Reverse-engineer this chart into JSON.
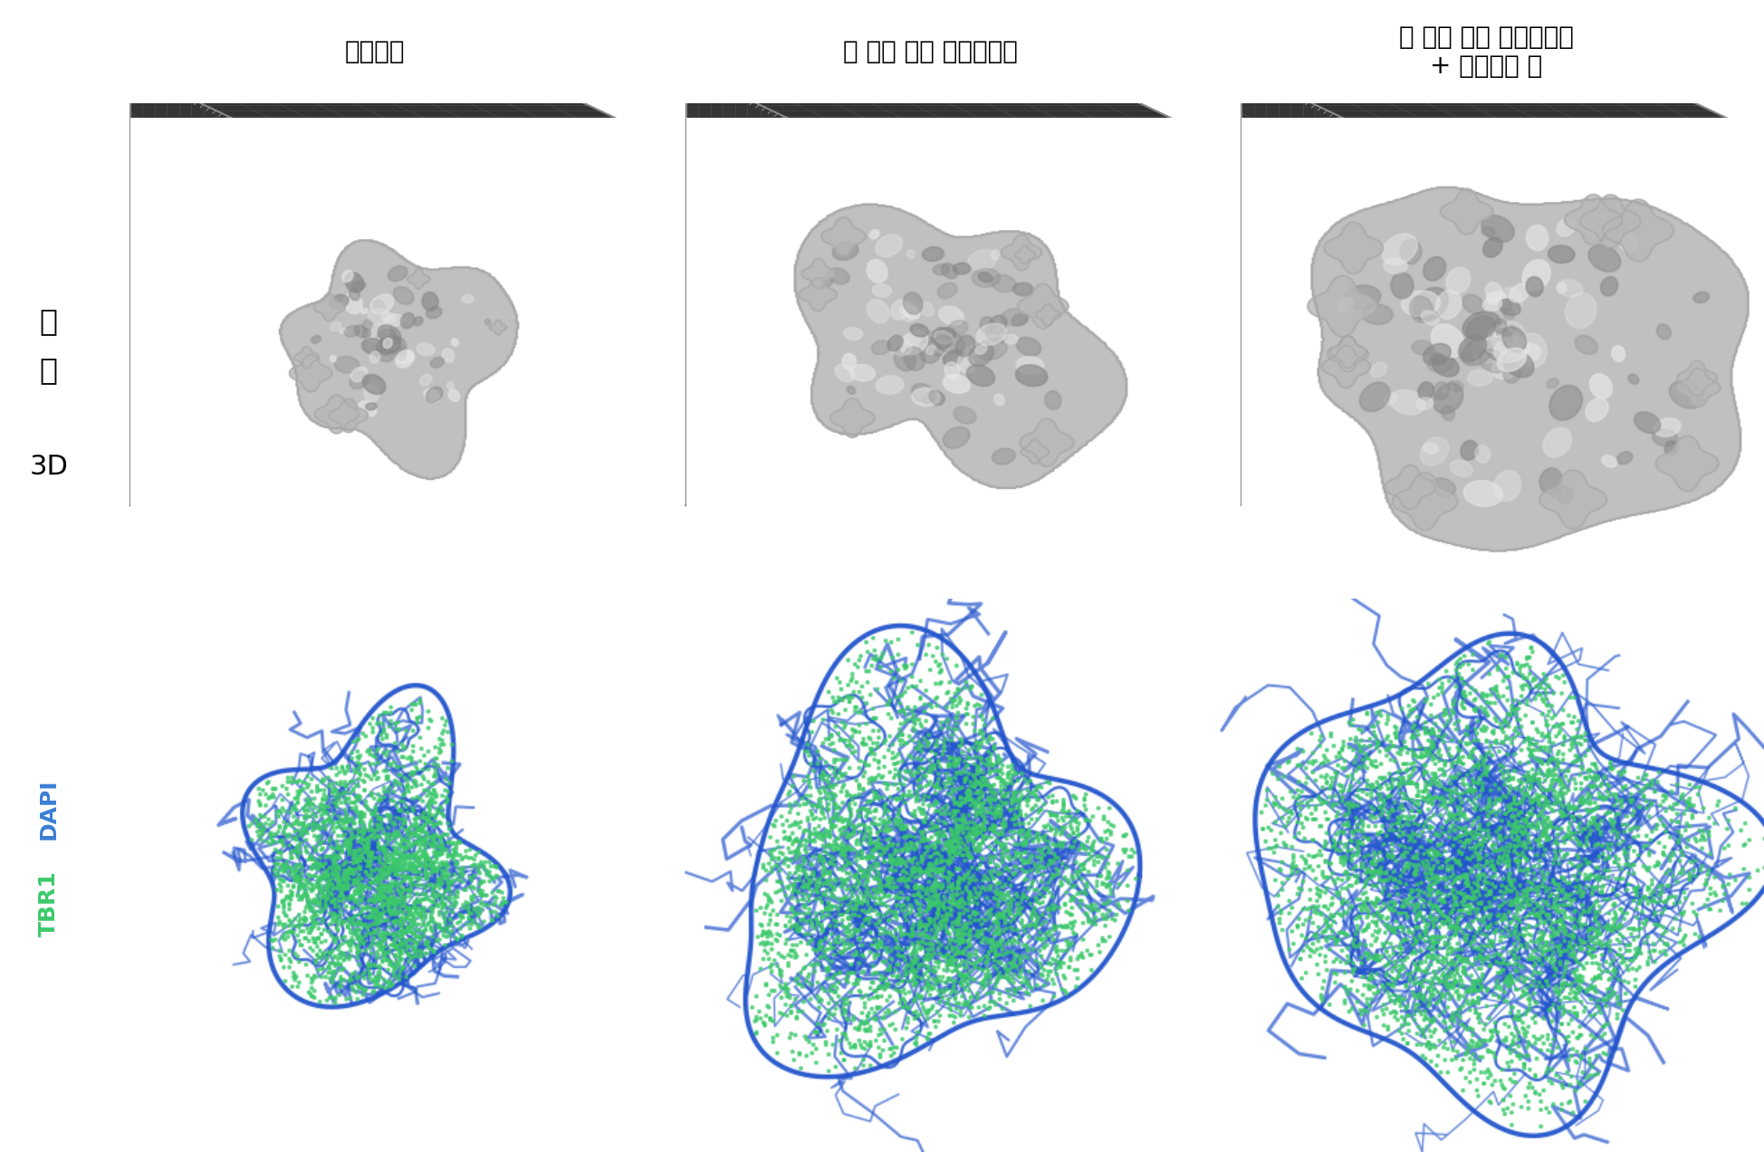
{
  "col_labels": [
    "매트리젤",
    "뇌 조직 모사 하이드로젤",
    "뇌 조직 모사 하이드로젤\n+ 미세유체 칩"
  ],
  "row_label_3d_line1": "서",
  "row_label_3d_line2": "구",
  "row_label_3d_prefix": "3D",
  "row_label_tbr1": "TBR1",
  "row_label_dapi": " DAPI",
  "bg_3d": "#2a2a2a",
  "bg_fl": "#000000",
  "bg_fig": "#ffffff",
  "grid_color_bright": "#888888",
  "grid_color_dim": "#555555",
  "tbr1_color": "#3cc96b",
  "dapi_color": "#3a7fd4",
  "white": "#ffffff",
  "label_fontsize": 20,
  "side_label_fontsize": 24,
  "tbr1_dapi_fontsize": 18,
  "organoid_sizes": [
    0.22,
    0.3,
    0.46
  ],
  "fl_sizes": [
    0.3,
    0.4,
    0.46
  ]
}
